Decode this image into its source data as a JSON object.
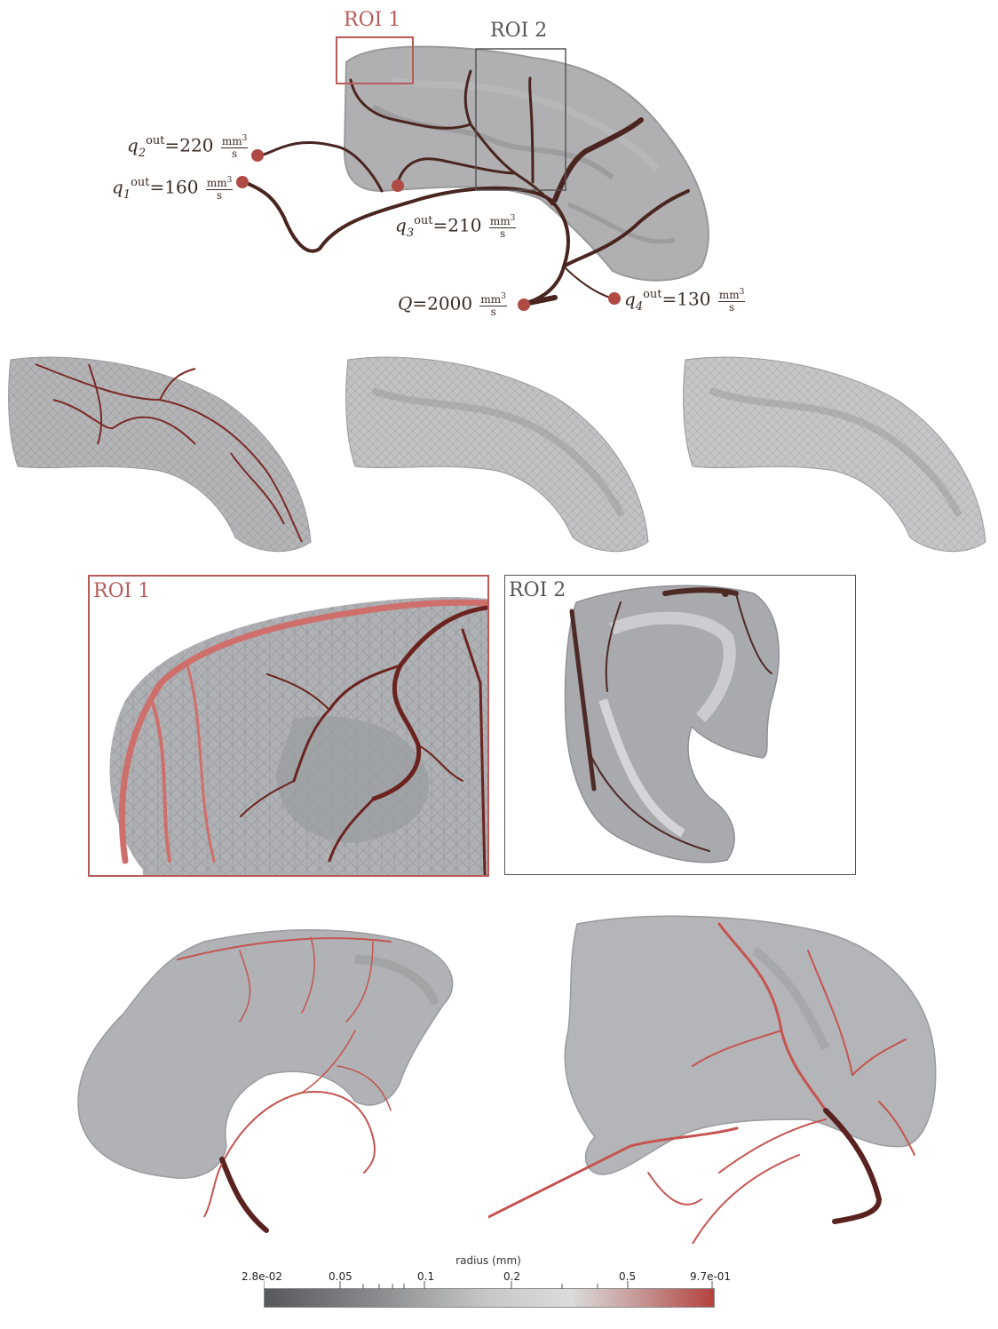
{
  "top": {
    "roi1_label": "ROI 1",
    "roi2_label": "ROI 2",
    "q2": {
      "sym": "q",
      "sub": "2",
      "sup": "out",
      "value": "=220",
      "unit_num": "mm",
      "unit_exp": "3",
      "unit_den": "s"
    },
    "q1": {
      "sym": "q",
      "sub": "1",
      "sup": "out",
      "value": "=160",
      "unit_num": "mm",
      "unit_exp": "3",
      "unit_den": "s"
    },
    "q3": {
      "sym": "q",
      "sub": "3",
      "sup": "out",
      "value": "=210",
      "unit_num": "mm",
      "unit_exp": "3",
      "unit_den": "s"
    },
    "q4": {
      "sym": "q",
      "sub": "4",
      "sup": "out",
      "value": "=130",
      "unit_num": "mm",
      "unit_exp": "3",
      "unit_den": "s"
    },
    "Q": {
      "sym": "Q",
      "value": "=2000",
      "unit_num": "mm",
      "unit_exp": "3",
      "unit_den": "s"
    }
  },
  "zoom": {
    "roi1_label": "ROI 1",
    "roi2_label": "ROI 2"
  },
  "colorbar": {
    "title": "radius (mm)",
    "ticks": [
      "2.8e-02",
      "0.05",
      "0.1",
      "0.2",
      "0.5",
      "9.7e-01"
    ],
    "color_low": "#56585c",
    "color_mid": "#dcdcdc",
    "color_high": "#b4423f"
  },
  "colors": {
    "vessel_dark": "#4a2520",
    "vessel_red": "#c0504d",
    "roi1_frame": "#b85a58",
    "roi2_frame": "#555555",
    "tissue": "#a9a9ab"
  }
}
